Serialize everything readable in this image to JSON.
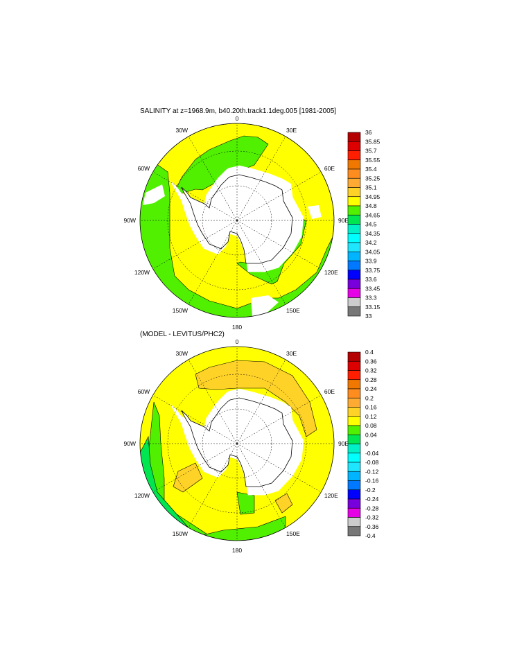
{
  "panels": [
    {
      "title": "SALINITY at z=1968.9m, b40.20th.track1.1deg.005 [1981-2005]",
      "colorbar": {
        "labels": [
          "36",
          "35.85",
          "35.7",
          "35.55",
          "35.4",
          "35.25",
          "35.1",
          "34.95",
          "34.8",
          "34.65",
          "34.5",
          "34.35",
          "34.2",
          "34.05",
          "33.9",
          "33.75",
          "33.6",
          "33.45",
          "33.3",
          "33.15",
          "33"
        ]
      }
    },
    {
      "title": "(MODEL - LEVITUS/PHC2)",
      "colorbar": {
        "labels": [
          "0.4",
          "0.36",
          "0.32",
          "0.28",
          "0.24",
          "0.2",
          "0.16",
          "0.12",
          "0.08",
          "0.04",
          "0",
          "-0.04",
          "-0.08",
          "-0.12",
          "-0.16",
          "-0.2",
          "-0.24",
          "-0.28",
          "-0.32",
          "-0.36",
          "-0.4"
        ]
      }
    }
  ],
  "longitude_labels": [
    "0",
    "30E",
    "60E",
    "90E",
    "120E",
    "150E",
    "180",
    "150W",
    "120W",
    "90W",
    "60W",
    "30W"
  ],
  "colorbar_colors": [
    "#b40000",
    "#dc0000",
    "#ff1e00",
    "#f07800",
    "#ff8c1e",
    "#ffaa32",
    "#ffd228",
    "#ffff00",
    "#50f000",
    "#00e650",
    "#00f0c8",
    "#00ffff",
    "#1ee6ff",
    "#00b4ff",
    "#0078ff",
    "#0000ff",
    "#7800dc",
    "#e600e6",
    "#cccccc",
    "#777777"
  ],
  "projection": "south polar stereographic"
}
